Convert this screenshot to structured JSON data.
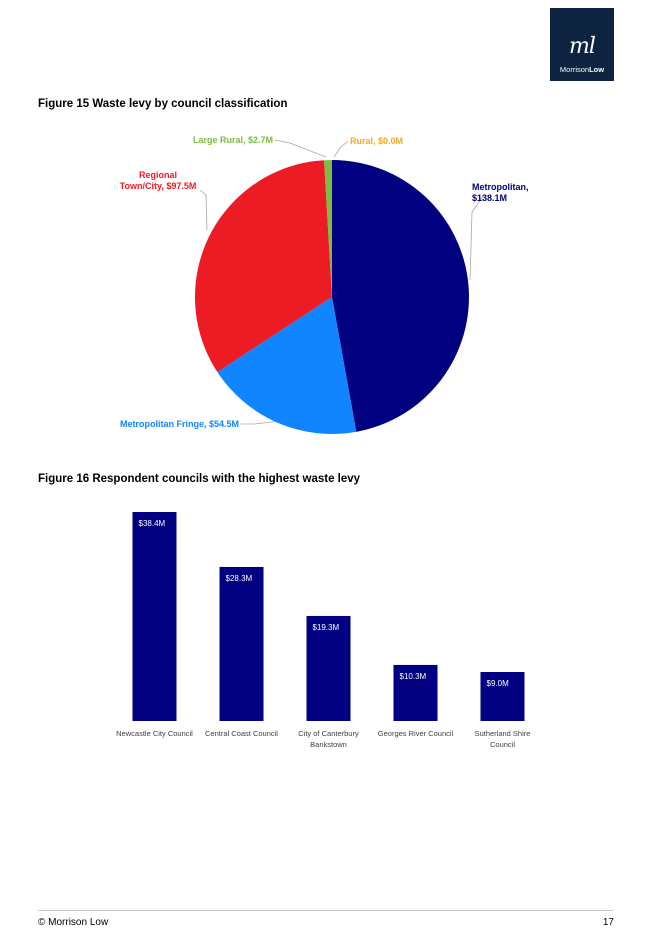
{
  "header": {
    "logo_mark": "ml",
    "logo_word_regular": "Morrison",
    "logo_word_bold": "Low"
  },
  "figures": {
    "fig15_title": "Figure 15  Waste levy by council classification",
    "fig16_title": "Figure 16  Respondent councils with the highest waste levy"
  },
  "chart_data": [
    {
      "type": "pie",
      "title": "",
      "slices": [
        {
          "label_lines": [
            "Metropolitan,",
            "$138.1M"
          ],
          "value": 138.1,
          "color": "#000080"
        },
        {
          "label_lines": [
            "Metropolitan Fringe, $54.5M"
          ],
          "value": 54.5,
          "color": "#1185fe"
        },
        {
          "label_lines": [
            "Regional",
            "Town/City, $97.5M"
          ],
          "value": 97.5,
          "color": "#ed1c24"
        },
        {
          "label_lines": [
            "Large Rural, $2.7M"
          ],
          "value": 2.7,
          "color": "#7cbd42"
        },
        {
          "label_lines": [
            "Rural, $0.0M"
          ],
          "value": 0.0,
          "color": "#f7a922"
        }
      ],
      "start_angle_deg": 0,
      "legend": "none"
    },
    {
      "type": "bar",
      "title": "",
      "categories": [
        [
          "Newcastle City Council"
        ],
        [
          "Central Coast Council"
        ],
        [
          "City of Canterbury",
          "Bankstown"
        ],
        [
          "Georges River Council"
        ],
        [
          "Sutherland Shire",
          "Council"
        ]
      ],
      "values": [
        38.4,
        28.3,
        19.3,
        10.3,
        9.0
      ],
      "data_labels": [
        "$38.4M",
        "$28.3M",
        "$19.3M",
        "$10.3M",
        "$9.0M"
      ],
      "bar_color": "#000080",
      "ylim": [
        0,
        38.4
      ],
      "grid": false,
      "legend": "none"
    }
  ],
  "footer": {
    "copyright": "© Morrison Low",
    "page_number": "17"
  }
}
